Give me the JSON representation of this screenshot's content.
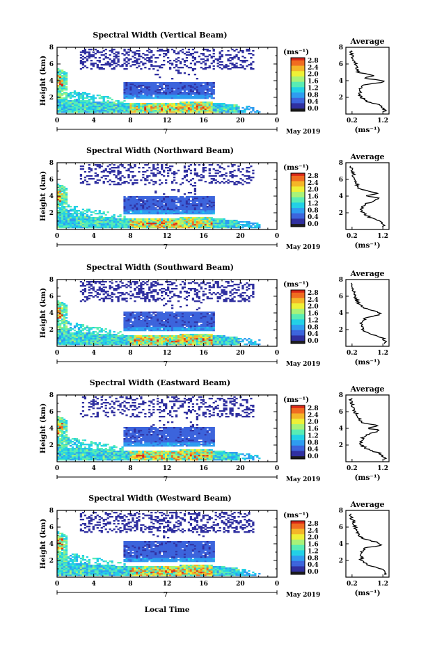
{
  "figure": {
    "x_label": "Local Time",
    "y_label": "Height (km)",
    "date_label": "May 2019",
    "day_label": "7",
    "colorbar_unit": "(ms⁻¹)",
    "profile_title": "Average",
    "profile_unit": "(ms⁻¹)"
  },
  "colormap": [
    "#1a1a1a",
    "#3030a0",
    "#3c64dc",
    "#2f9cf0",
    "#22d0e6",
    "#58ecb4",
    "#a8f278",
    "#eef036",
    "#f4b628",
    "#f06c20",
    "#d82818"
  ],
  "chart_data": [
    {
      "type": "heatmap",
      "title": "Spectral Width (Vertical Beam)",
      "x_range": [
        0,
        24
      ],
      "y_range": [
        0,
        8
      ],
      "x_ticks": [
        "0",
        "4",
        "8",
        "12",
        "16",
        "20",
        "0"
      ],
      "y_ticks": [
        "2",
        "4",
        "6",
        "8"
      ],
      "colorbar": {
        "range": [
          0,
          2.8
        ],
        "ticks": [
          "2.8",
          "2.4",
          "2.0",
          "1.6",
          "1.2",
          "0.8",
          "0.4",
          "0.0"
        ]
      },
      "average_profile": {
        "title": "Average",
        "x_range": [
          0,
          1.4
        ],
        "y_range": [
          0,
          8
        ],
        "x_ticks": [
          "0.2",
          "1.2"
        ],
        "y_ticks": [
          "2",
          "4",
          "6",
          "8"
        ],
        "height_km": [
          0.5,
          1.0,
          1.5,
          2.0,
          2.5,
          3.0,
          3.5,
          3.8,
          4.0,
          4.3,
          4.6,
          5.0,
          5.5,
          6.0,
          6.5,
          7.0,
          7.5
        ],
        "width_ms": [
          1.25,
          1.15,
          0.7,
          0.5,
          0.45,
          0.45,
          0.55,
          1.2,
          1.25,
          0.55,
          0.9,
          0.4,
          0.35,
          0.3,
          0.25,
          0.2,
          0.15
        ]
      }
    },
    {
      "type": "heatmap",
      "title": "Spectral Width (Northward Beam)",
      "x_range": [
        0,
        24
      ],
      "y_range": [
        0,
        8
      ],
      "x_ticks": [
        "0",
        "4",
        "8",
        "12",
        "16",
        "20",
        "0"
      ],
      "y_ticks": [
        "2",
        "4",
        "6",
        "8"
      ],
      "colorbar": {
        "range": [
          0,
          2.8
        ],
        "ticks": [
          "2.8",
          "2.4",
          "2.0",
          "1.6",
          "1.2",
          "0.8",
          "0.4",
          "0.0"
        ]
      },
      "average_profile": {
        "title": "Average",
        "x_range": [
          0,
          1.4
        ],
        "y_range": [
          0,
          8
        ],
        "x_ticks": [
          "0.2",
          "1.2"
        ],
        "y_ticks": [
          "2",
          "4",
          "6",
          "8"
        ],
        "height_km": [
          0.5,
          1.0,
          1.5,
          2.0,
          2.5,
          3.0,
          3.5,
          3.8,
          4.0,
          4.3,
          4.6,
          5.0,
          5.5,
          6.0,
          6.5,
          7.0,
          7.5
        ],
        "width_ms": [
          1.2,
          1.1,
          0.75,
          0.55,
          0.5,
          0.6,
          0.95,
          1.1,
          0.6,
          1.05,
          0.7,
          0.4,
          0.35,
          0.3,
          0.25,
          0.2,
          0.15
        ]
      }
    },
    {
      "type": "heatmap",
      "title": "Spectral Width (Southward Beam)",
      "x_range": [
        0,
        24
      ],
      "y_range": [
        0,
        8
      ],
      "x_ticks": [
        "0",
        "4",
        "8",
        "12",
        "16",
        "20",
        "0"
      ],
      "y_ticks": [
        "2",
        "4",
        "6",
        "8"
      ],
      "colorbar": {
        "range": [
          0,
          2.8
        ],
        "ticks": [
          "2.8",
          "2.4",
          "2.0",
          "1.6",
          "1.2",
          "0.8",
          "0.4",
          "0.0"
        ]
      },
      "average_profile": {
        "title": "Average",
        "x_range": [
          0,
          1.4
        ],
        "y_range": [
          0,
          8
        ],
        "x_ticks": [
          "0.2",
          "1.2"
        ],
        "y_ticks": [
          "2",
          "4",
          "6",
          "8"
        ],
        "height_km": [
          0.5,
          1.0,
          1.5,
          2.0,
          2.5,
          3.0,
          3.5,
          3.8,
          4.0,
          4.3,
          4.6,
          5.0,
          5.5,
          6.0,
          6.5,
          7.0,
          7.5
        ],
        "width_ms": [
          1.3,
          1.2,
          0.75,
          0.55,
          0.5,
          0.5,
          0.7,
          1.15,
          1.1,
          0.85,
          0.6,
          0.45,
          0.35,
          0.3,
          0.25,
          0.2,
          0.15
        ]
      }
    },
    {
      "type": "heatmap",
      "title": "Spectral Width (Eastward Beam)",
      "x_range": [
        0,
        24
      ],
      "y_range": [
        0,
        8
      ],
      "x_ticks": [
        "0",
        "4",
        "8",
        "12",
        "16",
        "20",
        "0"
      ],
      "y_ticks": [
        "2",
        "4",
        "6",
        "8"
      ],
      "colorbar": {
        "range": [
          0,
          2.8
        ],
        "ticks": [
          "2.8",
          "2.4",
          "2.0",
          "1.6",
          "1.2",
          "0.8",
          "0.4",
          "0.0"
        ]
      },
      "average_profile": {
        "title": "Average",
        "x_range": [
          0,
          1.4
        ],
        "y_range": [
          0,
          8
        ],
        "x_ticks": [
          "0.2",
          "1.2"
        ],
        "y_ticks": [
          "2",
          "4",
          "6",
          "8"
        ],
        "height_km": [
          0.5,
          1.0,
          1.5,
          2.0,
          2.5,
          3.0,
          3.5,
          3.8,
          4.0,
          4.3,
          4.6,
          5.0,
          5.5,
          6.0,
          6.5,
          7.0,
          7.5
        ],
        "width_ms": [
          1.25,
          1.1,
          0.7,
          0.5,
          0.5,
          0.55,
          0.9,
          1.15,
          0.65,
          1.1,
          0.6,
          0.45,
          0.35,
          0.3,
          0.25,
          0.2,
          0.15
        ]
      }
    },
    {
      "type": "heatmap",
      "title": "Spectral Width (Westward Beam)",
      "x_range": [
        0,
        24
      ],
      "y_range": [
        0,
        8
      ],
      "x_ticks": [
        "0",
        "4",
        "8",
        "12",
        "16",
        "20",
        "0"
      ],
      "y_ticks": [
        "2",
        "4",
        "6",
        "8"
      ],
      "colorbar": {
        "range": [
          0,
          2.8
        ],
        "ticks": [
          "2.8",
          "2.4",
          "2.0",
          "1.6",
          "1.2",
          "0.8",
          "0.4",
          "0.0"
        ]
      },
      "average_profile": {
        "title": "Average",
        "x_range": [
          0,
          1.4
        ],
        "y_range": [
          0,
          8
        ],
        "x_ticks": [
          "0.2",
          "1.2"
        ],
        "y_ticks": [
          "2",
          "4",
          "6",
          "8"
        ],
        "height_km": [
          0.5,
          1.0,
          1.5,
          2.0,
          2.5,
          3.0,
          3.5,
          3.8,
          4.0,
          4.3,
          4.6,
          5.0,
          5.5,
          6.0,
          6.5,
          7.0,
          7.5
        ],
        "width_ms": [
          1.25,
          1.15,
          0.7,
          0.5,
          0.5,
          0.5,
          0.6,
          1.1,
          1.15,
          0.9,
          0.55,
          0.45,
          0.35,
          0.3,
          0.25,
          0.2,
          0.15
        ]
      }
    }
  ]
}
